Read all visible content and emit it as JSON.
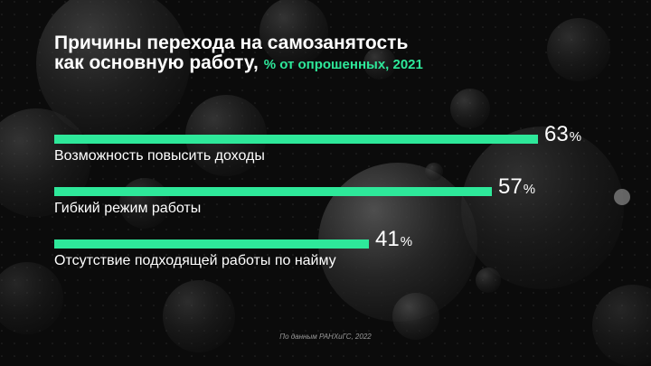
{
  "chart_data": {
    "type": "bar",
    "orientation": "horizontal",
    "title": "Причины перехода на самозанятость как основную работу,",
    "title_lines": [
      "Причины перехода на самозанятость",
      "как основную работу,"
    ],
    "subtitle": "% от опрошенных, 2021",
    "categories": [
      "Возможность повысить доходы",
      "Гибкий режим работы",
      "Отсутствие подходящей работы по найму"
    ],
    "values": [
      63,
      57,
      41
    ],
    "unit": "%",
    "xlim": [
      0,
      100
    ],
    "grid": false,
    "legend": "none",
    "source": "По данным РАНХиГС, 2022"
  },
  "colors": {
    "background": "#0b0b0b",
    "bar": "#2ee89a",
    "text": "#ffffff",
    "accent": "#2ee89a"
  }
}
